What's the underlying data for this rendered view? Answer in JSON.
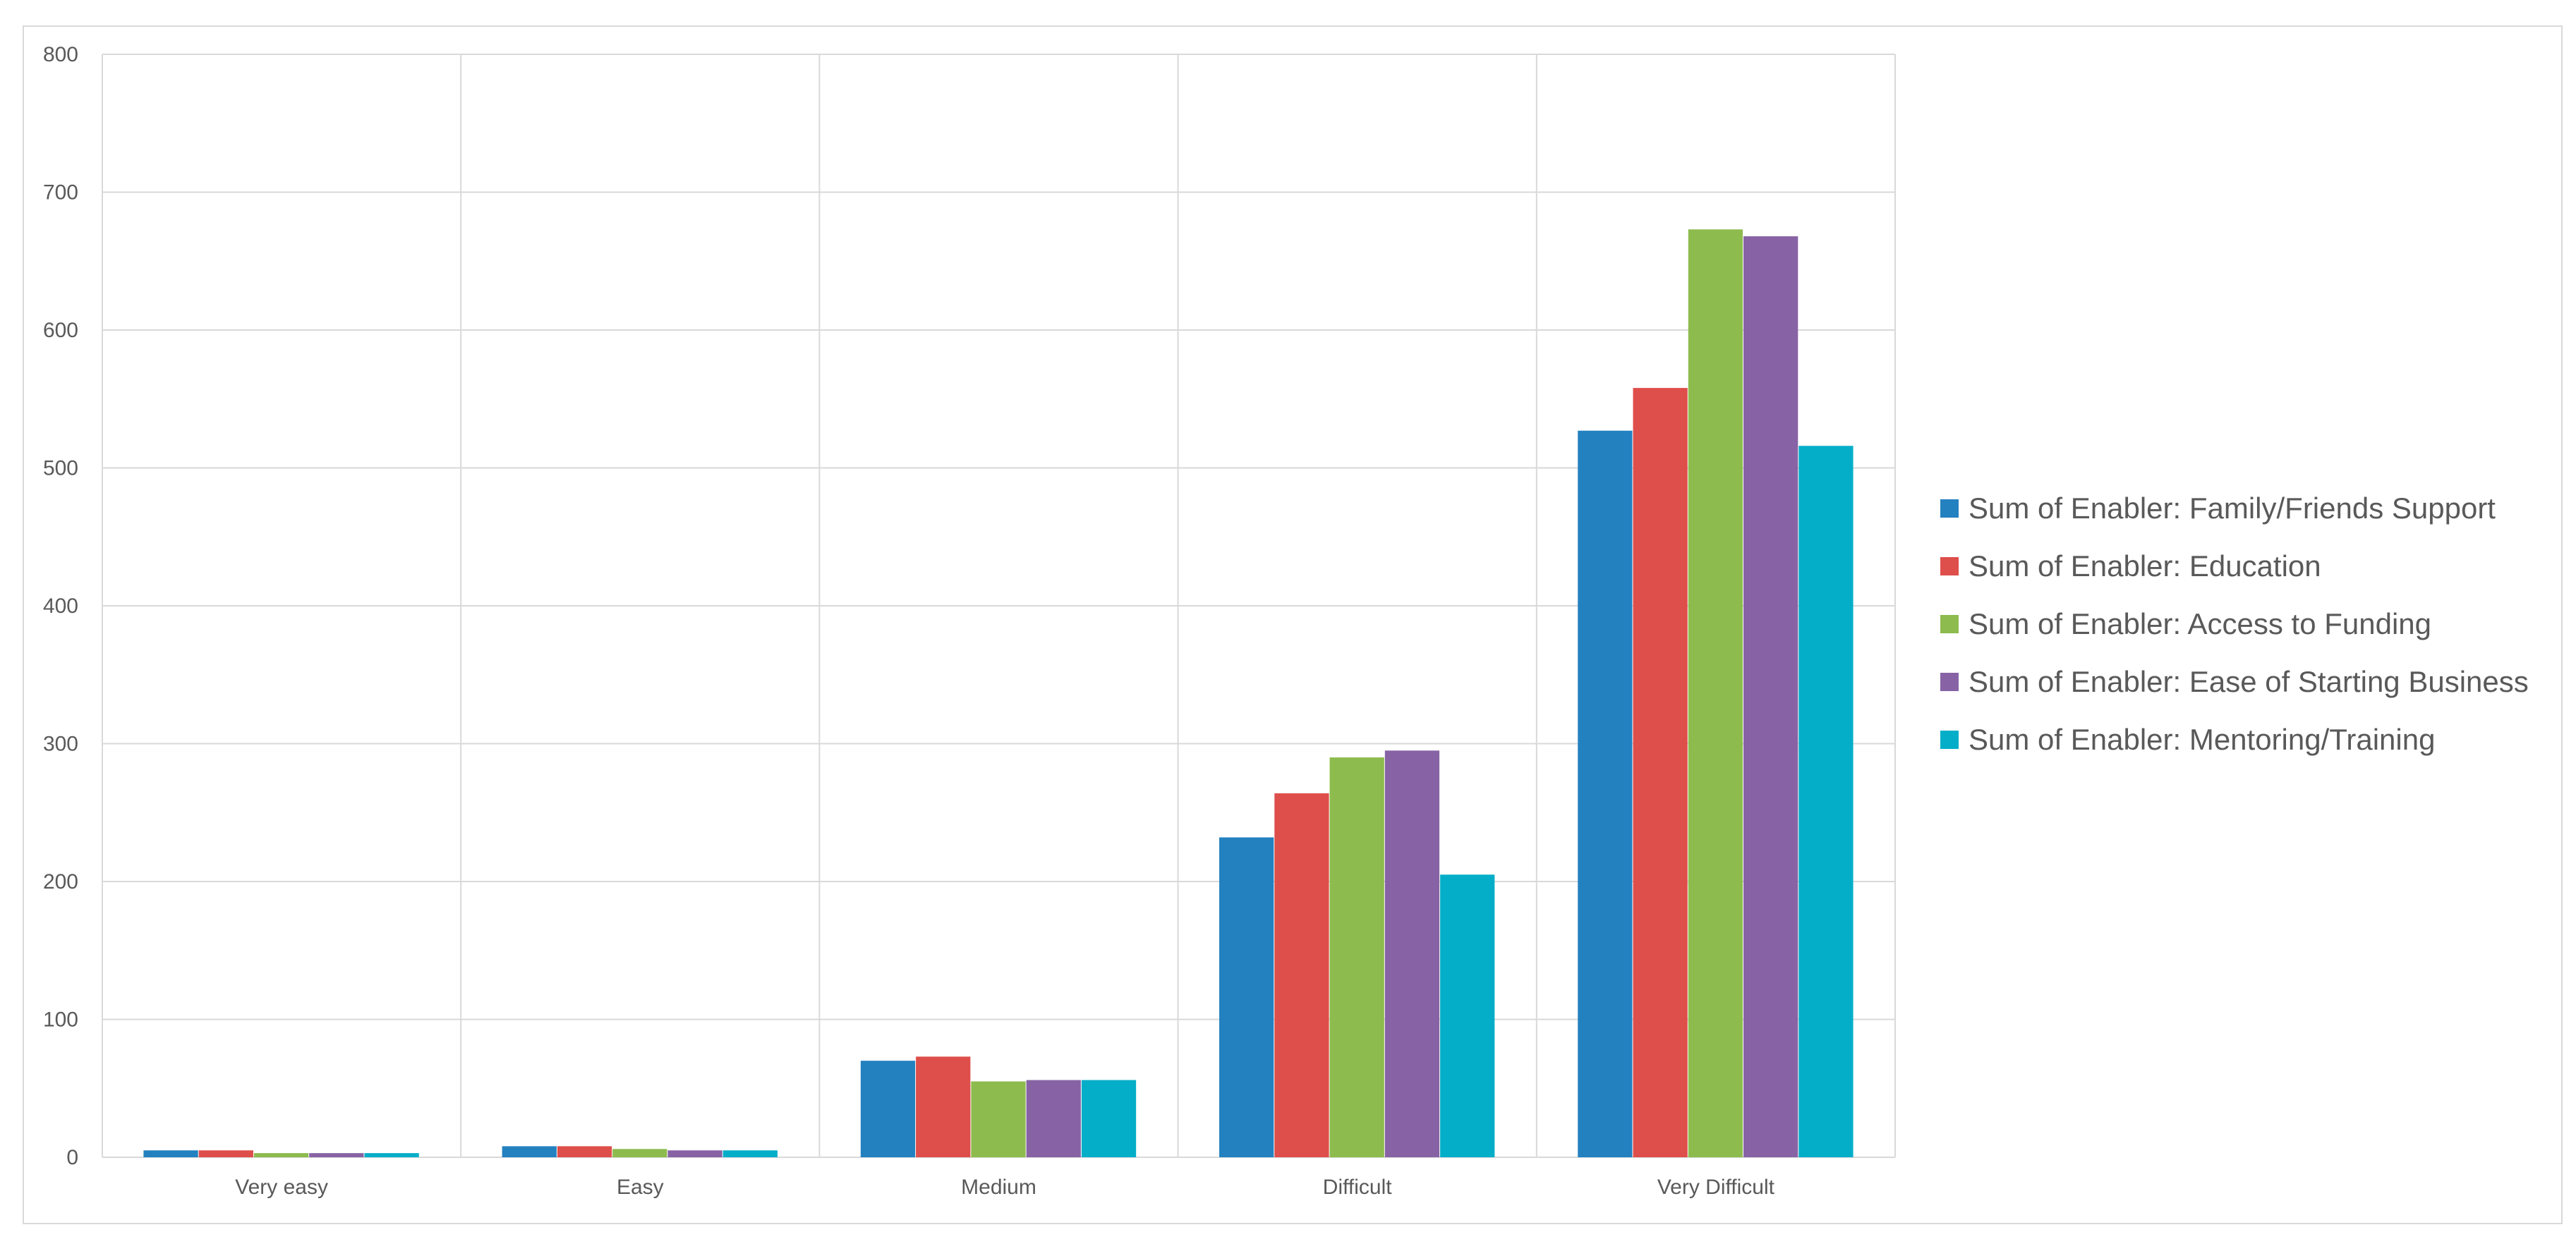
{
  "chart_data": {
    "type": "bar",
    "title": "",
    "xlabel": "",
    "ylabel": "",
    "ylim": [
      0,
      800
    ],
    "yticks": [
      0,
      100,
      200,
      300,
      400,
      500,
      600,
      700,
      800
    ],
    "grid": "on",
    "legend_position": "right",
    "categories": [
      "Very easy",
      "Easy",
      "Medium",
      "Difficult",
      "Very Difficult"
    ],
    "series": [
      {
        "name": "Sum of Enabler: Family/Friends Support",
        "color": "#2381C0",
        "values": [
          5,
          8,
          70,
          232,
          527
        ]
      },
      {
        "name": "Sum of Enabler: Education",
        "color": "#DE4E4B",
        "values": [
          5,
          8,
          73,
          264,
          558
        ]
      },
      {
        "name": "Sum of Enabler: Access to Funding",
        "color": "#8DBB4E",
        "values": [
          3,
          6,
          55,
          290,
          673
        ]
      },
      {
        "name": "Sum of Enabler: Ease of Starting Business",
        "color": "#8763A5",
        "values": [
          3,
          5,
          56,
          295,
          668
        ]
      },
      {
        "name": "Sum of Enabler: Mentoring/Training",
        "color": "#05AEC8",
        "values": [
          3,
          5,
          56,
          205,
          516
        ]
      }
    ]
  }
}
